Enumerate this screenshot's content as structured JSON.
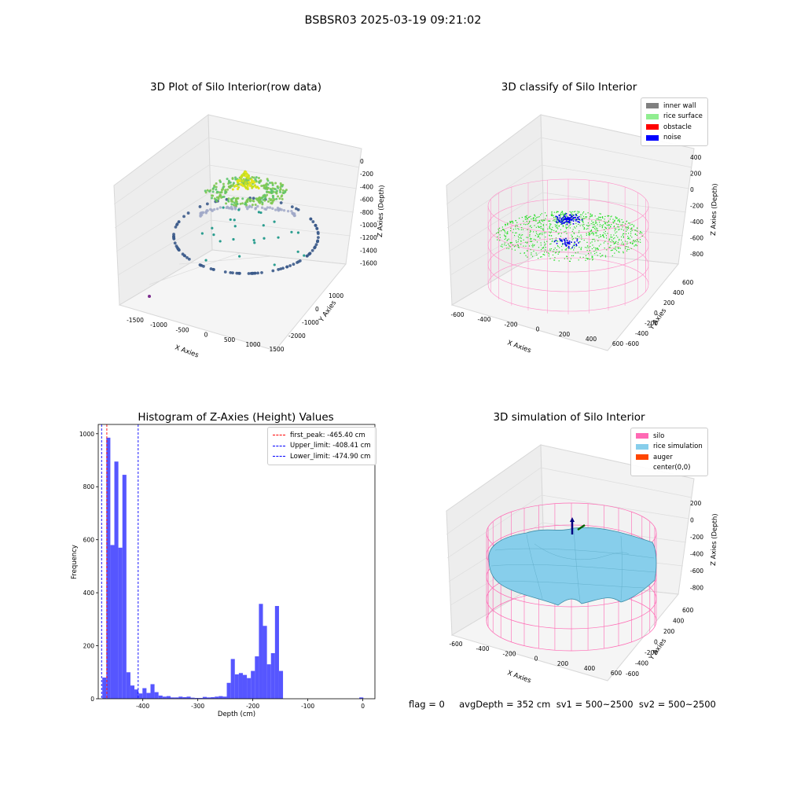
{
  "suptitle": "BSBSR03 2025-03-19 09:21:02",
  "footer_text": "flag = 0     avgDepth = 352 cm  sv1 = 500~2500  sv2 = 500~2500",
  "chart_data": [
    {
      "type": "scatter",
      "subtype": "3d",
      "title": "3D Plot of Silo Interior(row data)",
      "xlabel": "X Axies",
      "ylabel": "Y Axies",
      "zlabel": "Z Axies (Depth)",
      "x_ticks": [
        "-1500",
        "-1000",
        "-500",
        "0",
        "500",
        "1000",
        "1500"
      ],
      "y_ticks": [
        "1000",
        "0",
        "-1000",
        "-2000"
      ],
      "z_ticks": [
        "0",
        "-200",
        "-400",
        "-600",
        "-800",
        "-1000",
        "-1200",
        "-1400",
        "-1600"
      ],
      "colormap": "viridis",
      "grid": true
    },
    {
      "type": "scatter",
      "subtype": "3d",
      "title": "3D classify of Silo Interior",
      "xlabel": "X Axies",
      "ylabel": "Y Axies",
      "zlabel": "Z Axies (Depth)",
      "x_ticks": [
        "-600",
        "-400",
        "-200",
        "0",
        "200",
        "400",
        "600"
      ],
      "y_ticks": [
        "600",
        "400",
        "200",
        "0",
        "-200",
        "-400",
        "-600"
      ],
      "z_ticks": [
        "400",
        "200",
        "0",
        "-200",
        "-400",
        "-600",
        "-800"
      ],
      "legend": [
        {
          "label": "inner wall",
          "color": "#808080"
        },
        {
          "label": "rice surface",
          "color": "#90ee90"
        },
        {
          "label": "obstacle",
          "color": "#ff0000"
        },
        {
          "label": "noise",
          "color": "#0000ff"
        }
      ],
      "legend_position": "top-right",
      "grid": true
    },
    {
      "type": "bar",
      "subtype": "histogram",
      "title": "Histogram of Z-Axies (Height) Values",
      "xlabel": "Depth (cm)",
      "ylabel": "Frequency",
      "xlim": [
        -481,
        22
      ],
      "ylim": [
        0,
        1035
      ],
      "x_ticks": [
        -400,
        -300,
        -200,
        -100,
        0
      ],
      "y_ticks": [
        0,
        200,
        400,
        600,
        800,
        1000
      ],
      "bar_color": "#4d4dff",
      "bin_width": 7.3,
      "bins_left": [
        -473.6,
        -466.3,
        -459.0,
        -451.7,
        -444.4,
        -437.1,
        -429.8,
        -422.5,
        -415.2,
        -407.9,
        -400.6,
        -393.3,
        -386.0,
        -378.7,
        -371.4,
        -364.1,
        -356.8,
        -349.5,
        -342.2,
        -334.9,
        -327.6,
        -320.3,
        -313.0,
        -305.7,
        -298.4,
        -291.1,
        -283.8,
        -276.5,
        -269.2,
        -261.9,
        -254.6,
        -247.3,
        -240.0,
        -232.7,
        -225.4,
        -218.1,
        -210.8,
        -203.5,
        -196.2,
        -188.9,
        -181.6,
        -174.3,
        -167.0,
        -159.7,
        -152.4,
        -145.1,
        -137.8,
        -130.5,
        -123.2,
        -115.9,
        -108.6,
        -101.3,
        -94.0,
        -86.7,
        -79.4,
        -72.1,
        -64.8,
        -57.5,
        -50.2,
        -42.9,
        -35.6,
        -28.3,
        -21.0,
        -13.7,
        -6.4,
        0.9
      ],
      "values": [
        80,
        985,
        580,
        895,
        570,
        845,
        100,
        50,
        35,
        20,
        40,
        22,
        55,
        25,
        12,
        8,
        10,
        5,
        5,
        8,
        6,
        8,
        4,
        3,
        3,
        7,
        5,
        6,
        8,
        10,
        8,
        60,
        150,
        92,
        97,
        90,
        78,
        105,
        160,
        358,
        275,
        130,
        172,
        350,
        105,
        0,
        0,
        0,
        0,
        0,
        0,
        0,
        0,
        0,
        0,
        0,
        0,
        0,
        0,
        0,
        0,
        0,
        0,
        0,
        5,
        0
      ],
      "vlines": [
        {
          "label": "first_peak: -465.40 cm",
          "x": -465.4,
          "color": "#ff0000"
        },
        {
          "label": "Upper_limit: -408.41 cm",
          "x": -408.41,
          "color": "#0000ff"
        },
        {
          "label": "Lower_limit: -474.90 cm",
          "x": -474.9,
          "color": "#0000ff"
        }
      ],
      "legend_position": "top-right"
    },
    {
      "type": "area",
      "subtype": "3d surface",
      "title": "3D simulation of Silo Interior",
      "xlabel": "X Axies",
      "ylabel": "Y Axies",
      "zlabel": "Z Axies (Depth)",
      "x_ticks": [
        "-600",
        "-400",
        "-200",
        "0",
        "200",
        "400",
        "600"
      ],
      "y_ticks": [
        "600",
        "400",
        "200",
        "0",
        "-200",
        "-400",
        "-600"
      ],
      "z_ticks": [
        "200",
        "0",
        "-200",
        "-400",
        "-600",
        "-800"
      ],
      "legend": [
        {
          "label": "silo",
          "color": "#ff69b4"
        },
        {
          "label": "rice simulation",
          "color": "#87ceeb"
        },
        {
          "label": "auger",
          "color": "#ff4500"
        },
        {
          "label": "center(0,0)",
          "color": ""
        }
      ],
      "legend_position": "top-right",
      "grid": true
    }
  ]
}
